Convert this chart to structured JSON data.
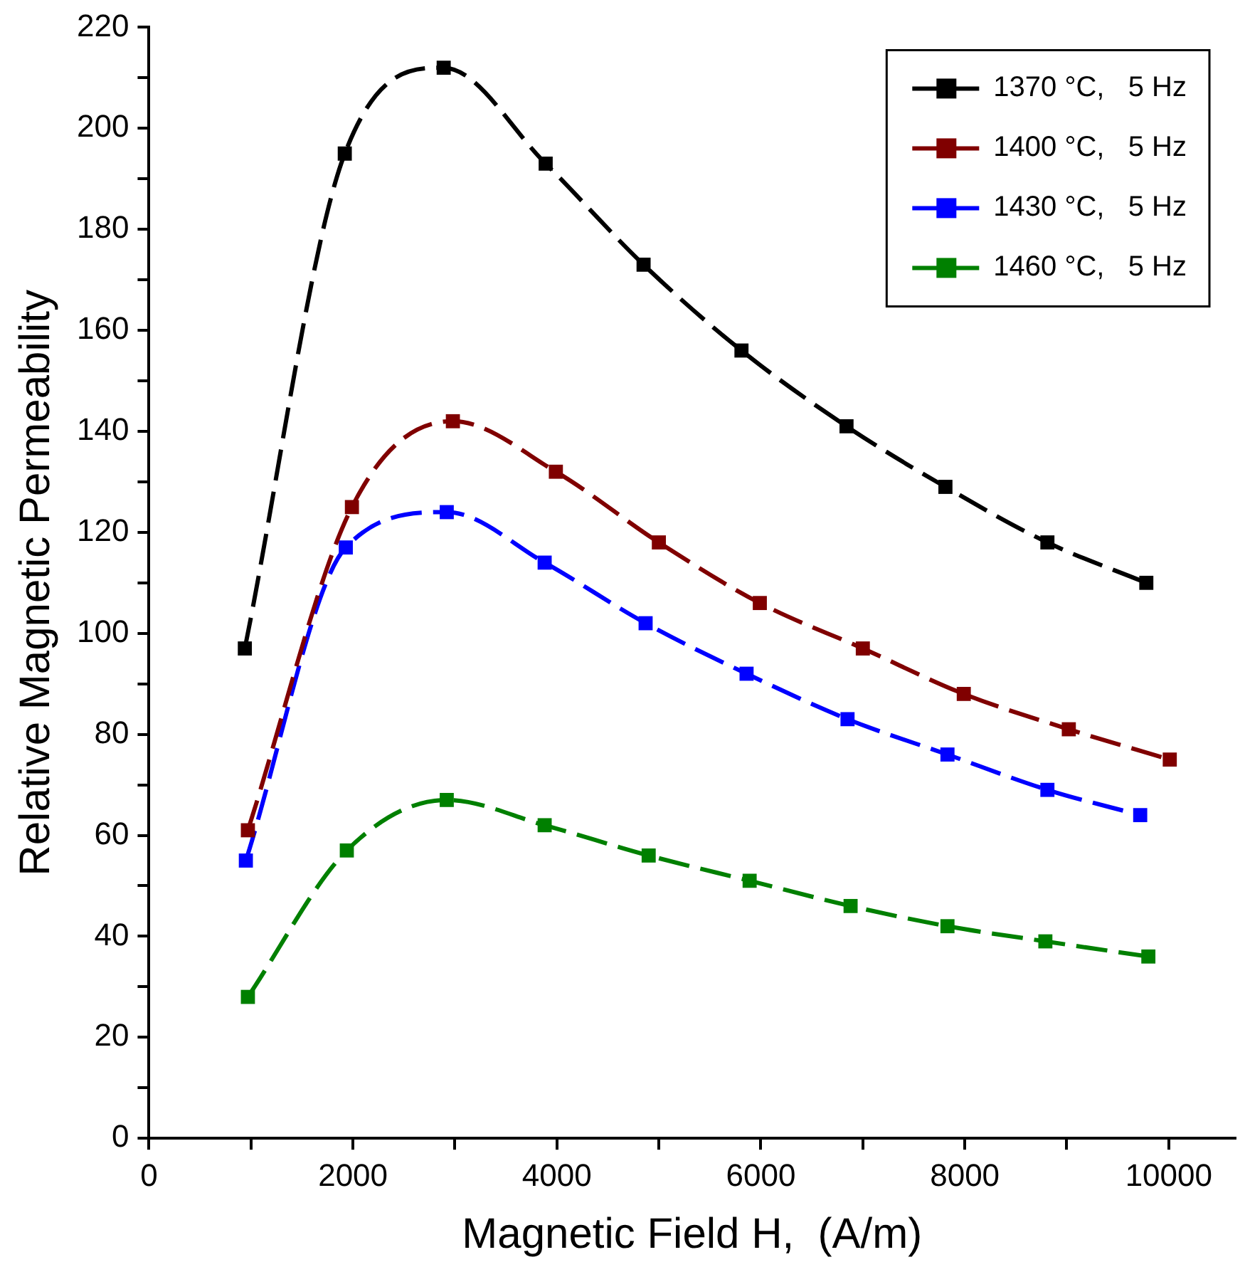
{
  "chart_data": {
    "type": "line",
    "xlabel": "Magnetic Field H,  (A/m)",
    "ylabel": "Relative Magnetic Permeability",
    "xlim": [
      0,
      10650
    ],
    "ylim": [
      0,
      220
    ],
    "xticks": [
      0,
      {
        "value": 1000,
        "label": null
      },
      2000,
      {
        "value": 3000,
        "label": null
      },
      4000,
      {
        "value": 5000,
        "label": null
      },
      6000,
      {
        "value": 7000,
        "label": null
      },
      8000,
      {
        "value": 9000,
        "label": null
      },
      10000
    ],
    "yticks": [
      0,
      {
        "value": 10,
        "label": null
      },
      20,
      {
        "value": 30,
        "label": null
      },
      40,
      {
        "value": 50,
        "label": null
      },
      60,
      {
        "value": 70,
        "label": null
      },
      80,
      {
        "value": 90,
        "label": null
      },
      100,
      {
        "value": 110,
        "label": null
      },
      120,
      {
        "value": 130,
        "label": null
      },
      140,
      {
        "value": 150,
        "label": null
      },
      160,
      {
        "value": 170,
        "label": null
      },
      180,
      {
        "value": 190,
        "label": null
      },
      200,
      {
        "value": 210,
        "label": null
      },
      220
    ],
    "grid": false,
    "legend": "top right",
    "marker": "square",
    "line_style": "dashed",
    "series": [
      {
        "name": "1370 °C,   5 Hz",
        "color": "#000000",
        "x": [
          940,
          1920,
          2890,
          3890,
          4850,
          5810,
          6840,
          7810,
          8810,
          9780
        ],
        "values": [
          97,
          195,
          212,
          193,
          173,
          156,
          141,
          129,
          118,
          110
        ]
      },
      {
        "name": "1400 °C,   5 Hz",
        "color": "#800000",
        "x": [
          970,
          1990,
          2980,
          3990,
          5000,
          5990,
          7000,
          7990,
          9020,
          10010
        ],
        "values": [
          61,
          125,
          142,
          132,
          118,
          106,
          97,
          88,
          81,
          75
        ]
      },
      {
        "name": "1430 °C,   5 Hz",
        "color": "#0000ff",
        "x": [
          950,
          1930,
          2920,
          3880,
          4870,
          5860,
          6850,
          7830,
          8810,
          9720
        ],
        "values": [
          55,
          117,
          124,
          114,
          102,
          92,
          83,
          76,
          69,
          64
        ]
      },
      {
        "name": "1460 °C,   5 Hz",
        "color": "#008000",
        "x": [
          970,
          1940,
          2920,
          3880,
          4900,
          5890,
          6880,
          7830,
          8790,
          9800
        ],
        "values": [
          28,
          57,
          67,
          62,
          56,
          51,
          46,
          42,
          39,
          36
        ]
      }
    ]
  }
}
